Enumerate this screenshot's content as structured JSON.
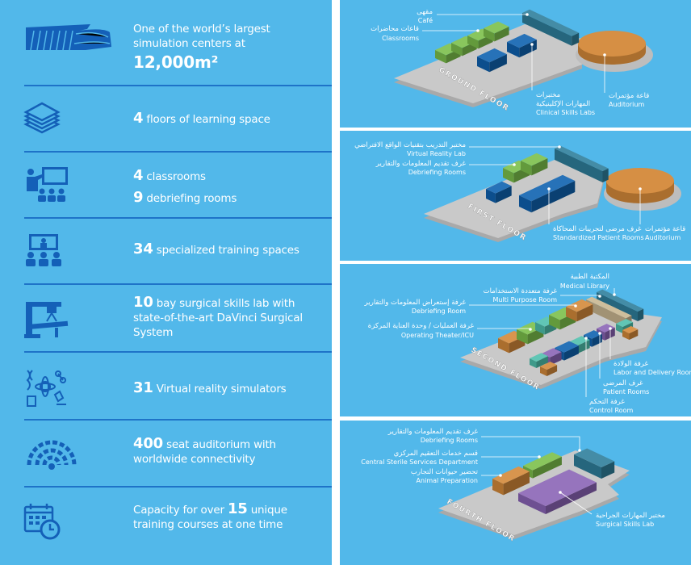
{
  "colors": {
    "background": "#52b8ea",
    "divider": "#1e73c8",
    "icon": "#1460b8",
    "slab": "#c9c9c9",
    "green": "#7cc04b",
    "blue": "#0f62b0",
    "teal": "#2f7f9c",
    "orange": "#d4893a",
    "purple": "#8a64b6",
    "beige": "#c9b791",
    "aqua": "#4fc0ad"
  },
  "facts": [
    {
      "icon": "building-icon",
      "text": "One of the world’s largest simulation centers at",
      "number": "12,000m²"
    },
    {
      "icon": "floors-stack-icon",
      "number": "4",
      "text": " floors of learning space"
    },
    {
      "icon": "classroom-icon",
      "number": "4",
      "text": " classrooms",
      "number2": "9",
      "text2": " debriefing rooms"
    },
    {
      "icon": "training-audience-icon",
      "number": "34",
      "text": " specialized training spaces"
    },
    {
      "icon": "surgical-robot-icon",
      "number": "10",
      "text": " bay surgical skills lab with state-of-the-art DaVinci Surgical System"
    },
    {
      "icon": "virtual-reality-icon",
      "number": "31",
      "text": " Virtual reality simulators"
    },
    {
      "icon": "auditorium-wifi-icon",
      "number": "400",
      "text": " seat auditorium with worldwide connectivity"
    },
    {
      "icon": "calendar-clock-icon",
      "text": "Capacity for over ",
      "number": "15",
      "text2": " unique training courses at one time"
    }
  ],
  "floors": [
    {
      "name": "GROUND FLOOR",
      "labels": [
        {
          "ar": "مقهى",
          "en": "Café"
        },
        {
          "ar": "قاعات محاضرات",
          "en": "Classrooms"
        },
        {
          "ar": "مختبرات",
          "ar2": "المهارات الإكلينيكية",
          "en": "Clinical Skills Labs"
        },
        {
          "ar": "قاعة مؤتمرات",
          "en": "Auditorium"
        }
      ]
    },
    {
      "name": "FIRST FLOOR",
      "labels": [
        {
          "ar": "مختبر التدريب بتقنيات الواقع الافتراضي",
          "en": "Virtual Reality Lab"
        },
        {
          "ar": "غرف تقديم المعلومات والتقارير",
          "en": "Debriefing Rooms"
        },
        {
          "ar": "غرف مرضى لتجريبات المحاكاة",
          "en": "Standardized Patient Rooms"
        },
        {
          "ar": "قاعة مؤتمرات",
          "en": "Auditorium"
        }
      ]
    },
    {
      "name": "SECOND FLOOR",
      "labels": [
        {
          "ar": "المكتبة الطبية",
          "en": "Medical Library"
        },
        {
          "ar": "غرفة متعددة الاستخدامات",
          "en": "Multi Purpose Room"
        },
        {
          "ar": "غرفة إستعراض المعلومات والتقارير",
          "en": "Debriefing Room"
        },
        {
          "ar": "غرفة العمليات / وحدة العناية المركزة",
          "en": "Operating Theater/ICU"
        },
        {
          "ar": "غرفة الولادة",
          "en": "Labor and Delivery Room"
        },
        {
          "ar": "غرف المرضى",
          "en": "Patient Rooms"
        },
        {
          "ar": "غرفة التحكم",
          "en": "Control Room"
        }
      ]
    },
    {
      "name": "FOURTH FLOOR",
      "labels": [
        {
          "ar": "غرف تقديم المعلومات والتقارير",
          "en": "Debriefing Rooms"
        },
        {
          "ar": "قسم خدمات التعقيم المركزي",
          "en": "Central Sterile Services Department"
        },
        {
          "ar": "تحضير حيوانات التجارب",
          "en": "Animal Preparation"
        },
        {
          "ar": "مختبر المهارات الجراحية",
          "en": "Surgical Skills Lab"
        }
      ]
    }
  ]
}
